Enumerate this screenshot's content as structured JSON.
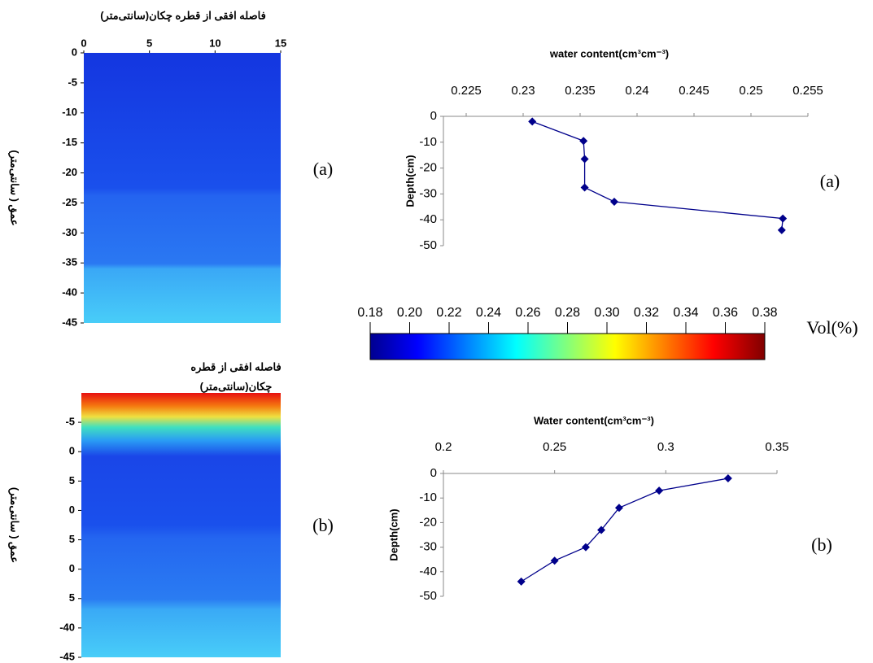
{
  "chart_data": [
    {
      "type": "heatmap",
      "title": "فاصله افقی از قطره چکان(سانتی‌متر)",
      "y_label": "عمق ( سانتی‌متر)",
      "panel_label": "(a)",
      "xlim": [
        0,
        15
      ],
      "xticks": [
        0,
        5,
        10,
        15
      ],
      "ylim": [
        0,
        -45
      ],
      "yticks": [
        0,
        -5,
        -10,
        -15,
        -20,
        -25,
        -30,
        -35,
        -40,
        -45
      ]
    },
    {
      "type": "heatmap",
      "title": [
        "فاصله افقی از قطره",
        "چکان(سانتی‌متر)"
      ],
      "y_label": "عمق ( سانتی‌متر)",
      "panel_label": "(b)",
      "ylim": [
        0,
        -45
      ],
      "yticks": [
        -5,
        {
          "value": -10,
          "label": "0"
        },
        {
          "value": -15,
          "label": "5"
        },
        {
          "value": -20,
          "label": "0"
        },
        {
          "value": -25,
          "label": "5"
        },
        {
          "value": -30,
          "label": "0"
        },
        {
          "value": -35,
          "label": "5"
        },
        -40,
        -45
      ]
    },
    {
      "type": "line",
      "title": "water content(cm³cm⁻³)",
      "y_label": "Depth(cm)",
      "panel_label": "(a)",
      "xlim": [
        0.223,
        0.255
      ],
      "xticks": [
        0.225,
        0.23,
        0.235,
        0.24,
        0.245,
        0.25,
        0.255
      ],
      "ylim": [
        -50,
        0
      ],
      "yticks": [
        0,
        -10,
        -20,
        -30,
        -40,
        -50
      ],
      "x": [
        0.2308,
        0.2353,
        0.2354,
        0.2354,
        0.238,
        0.2528,
        0.2527
      ],
      "series": [
        {
          "color": "#00008b",
          "values": [
            -2,
            -9.5,
            -16.5,
            -27.5,
            -33,
            -39.5,
            -44
          ]
        }
      ]
    },
    {
      "type": "colorbar",
      "label": "Vol(%)",
      "xlim": [
        0.18,
        0.38
      ],
      "xticks": [
        0.18,
        {
          "value": 0.2,
          "label": "0.20"
        },
        0.22,
        0.24,
        0.26,
        0.28,
        {
          "value": 0.3,
          "label": "0.30"
        },
        0.32,
        0.34,
        0.36,
        0.38
      ]
    },
    {
      "type": "line",
      "title": "Water content(cm³cm⁻³)",
      "y_label": "Depth(cm)",
      "panel_label": "(b)",
      "xlim": [
        0.2,
        0.35
      ],
      "xticks": [
        0.2,
        0.25,
        0.3,
        0.35
      ],
      "ylim": [
        -50,
        0
      ],
      "yticks": [
        0,
        -10,
        -20,
        -30,
        -40,
        -50
      ],
      "x": [
        0.328,
        0.297,
        0.279,
        0.271,
        0.264,
        0.25,
        0.235
      ],
      "series": [
        {
          "color": "#00008b",
          "values": [
            -2,
            -7,
            -14,
            -23,
            -30,
            -35.5,
            -44
          ]
        }
      ]
    }
  ]
}
